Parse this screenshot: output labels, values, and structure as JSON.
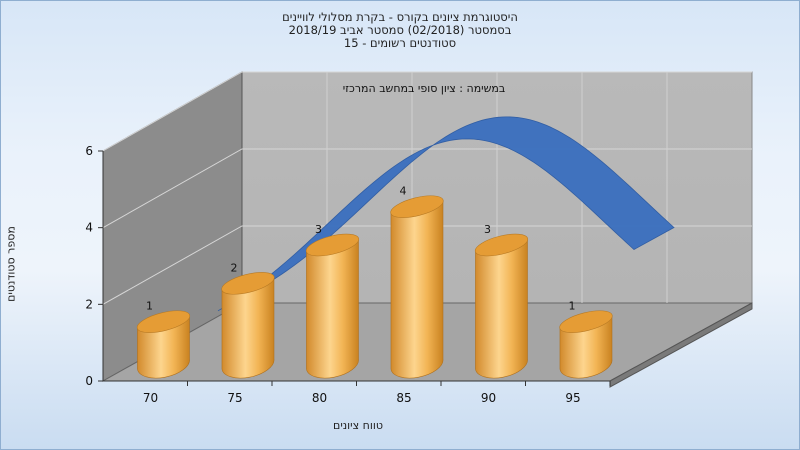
{
  "title_lines": [
    "היסטוגרמת ציונים בקורס - בקרת מסלולי לוויינים",
    "בסמסטר (02/2018) סמסטר אביב 2018/19",
    "סטודנטים רשומים - 15"
  ],
  "chart_data": {
    "type": "bar",
    "subtitle": "במשימה : ציון סופי במחשב המרכזי",
    "xlabel": "טווח ציונים",
    "ylabel": "מספר סטודנטים",
    "categories": [
      "70",
      "75",
      "80",
      "85",
      "90",
      "95"
    ],
    "values": [
      1,
      2,
      3,
      4,
      3,
      1
    ],
    "ylim": [
      0,
      6
    ],
    "yticks": [
      "0",
      "2",
      "4",
      "6"
    ],
    "grid": true,
    "bar_color": "#e8a541",
    "curve_color": "#3a6fbf"
  }
}
